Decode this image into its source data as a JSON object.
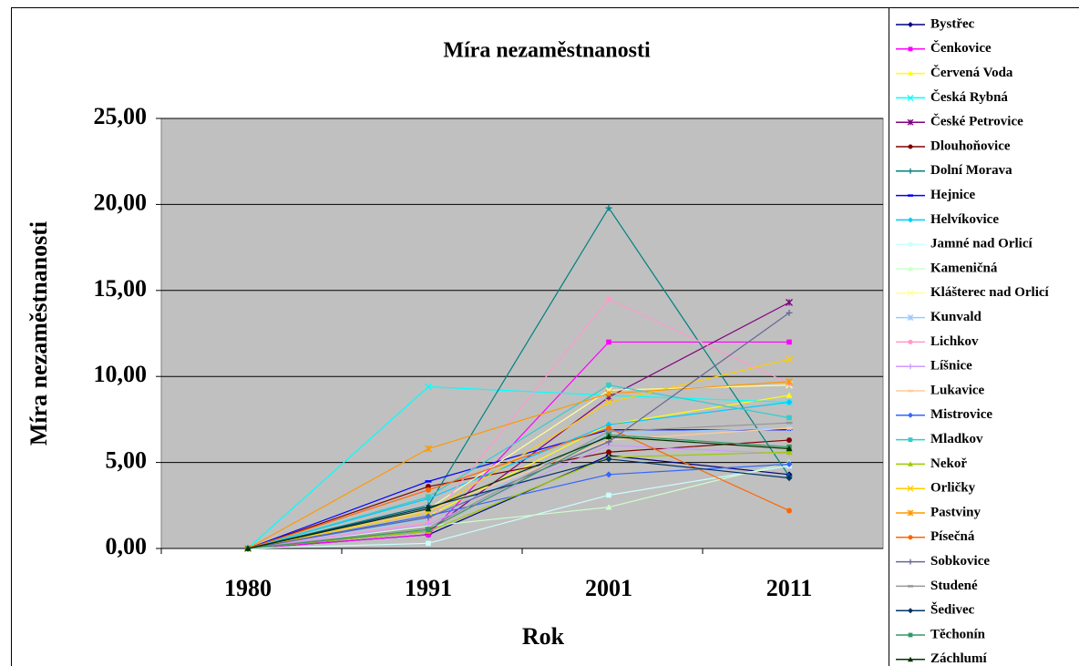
{
  "chart_data": {
    "type": "line",
    "title": "Míra nezaměstnanosti",
    "x_label": "Rok",
    "y_label": "Míra nezaměstnanosti",
    "categories": [
      "1980",
      "1991",
      "2001",
      "2011"
    ],
    "ylim": [
      0,
      25
    ],
    "yticks": [
      {
        "value": 0,
        "label": "0,00"
      },
      {
        "value": 5,
        "label": "5,00"
      },
      {
        "value": 10,
        "label": "10,00"
      },
      {
        "value": 15,
        "label": "15,00"
      },
      {
        "value": 20,
        "label": "20,00"
      },
      {
        "value": 25,
        "label": "25,00"
      }
    ],
    "grid": true,
    "legend": "right",
    "series": [
      {
        "name": "Bystřec",
        "color": "#000080",
        "values": [
          0,
          0.8,
          5.4,
          4.3
        ]
      },
      {
        "name": "Čenkovice",
        "color": "#FF00FF",
        "values": [
          0,
          0.8,
          12.0,
          12.0
        ]
      },
      {
        "name": "Červená Voda",
        "color": "#FFFF00",
        "values": [
          0,
          1.9,
          7.2,
          8.9
        ]
      },
      {
        "name": "Česká Rybná",
        "color": "#00FFFF",
        "values": [
          0,
          9.4,
          8.9,
          8.5
        ]
      },
      {
        "name": "České Petrovice",
        "color": "#800080",
        "values": [
          0,
          1.0,
          8.8,
          14.3
        ]
      },
      {
        "name": "Dlouhoňovice",
        "color": "#800000",
        "values": [
          0,
          3.6,
          5.6,
          6.3
        ]
      },
      {
        "name": "Dolní Morava",
        "color": "#008080",
        "values": [
          0,
          2.5,
          19.8,
          4.2
        ]
      },
      {
        "name": "Hejnice",
        "color": "#0000FF",
        "values": [
          0,
          3.9,
          6.9,
          6.9
        ]
      },
      {
        "name": "Helvíkovice",
        "color": "#00CCFF",
        "values": [
          0,
          2.9,
          7.2,
          8.5
        ]
      },
      {
        "name": "Jamné nad Orlicí",
        "color": "#CCFFFF",
        "values": [
          0,
          0.3,
          3.1,
          4.8
        ]
      },
      {
        "name": "Kameničná",
        "color": "#CCFFCC",
        "values": [
          0,
          1.3,
          2.4,
          5.0
        ]
      },
      {
        "name": "Klášterec nad Orlicí",
        "color": "#FFFF99",
        "values": [
          0,
          2.3,
          9.2,
          9.5
        ]
      },
      {
        "name": "Kunvald",
        "color": "#99CCFF",
        "values": [
          0,
          1.7,
          6.7,
          7.0
        ]
      },
      {
        "name": "Lichkov",
        "color": "#FF99CC",
        "values": [
          0,
          1.5,
          14.5,
          9.6
        ]
      },
      {
        "name": "Líšnice",
        "color": "#CC99FF",
        "values": [
          0,
          1.4,
          6.0,
          5.5
        ]
      },
      {
        "name": "Lukavice",
        "color": "#FFCC99",
        "values": [
          0,
          2.2,
          6.3,
          7.0
        ]
      },
      {
        "name": "Mistrovice",
        "color": "#3366FF",
        "values": [
          0,
          1.9,
          4.3,
          4.9
        ]
      },
      {
        "name": "Mladkov",
        "color": "#33CCCC",
        "values": [
          0,
          3.0,
          9.5,
          7.6
        ]
      },
      {
        "name": "Nekoř",
        "color": "#99CC00",
        "values": [
          0,
          1.0,
          5.3,
          5.6
        ]
      },
      {
        "name": "Orličky",
        "color": "#FFCC00",
        "values": [
          0,
          2.1,
          8.5,
          11.0
        ]
      },
      {
        "name": "Pastviny",
        "color": "#FF9900",
        "values": [
          0,
          5.8,
          9.0,
          9.7
        ]
      },
      {
        "name": "Písečná",
        "color": "#FF6600",
        "values": [
          0,
          3.4,
          7.0,
          2.2
        ]
      },
      {
        "name": "Sobkovice",
        "color": "#666699",
        "values": [
          0,
          1.8,
          6.2,
          13.7
        ]
      },
      {
        "name": "Studené",
        "color": "#969696",
        "values": [
          0,
          1.2,
          6.8,
          7.3
        ]
      },
      {
        "name": "Šedivec",
        "color": "#003366",
        "values": [
          0,
          2.4,
          5.2,
          4.1
        ]
      },
      {
        "name": "Těchonín",
        "color": "#339966",
        "values": [
          0,
          1.1,
          6.6,
          5.9
        ]
      },
      {
        "name": "Záchlumí",
        "color": "#003300",
        "values": [
          0,
          2.3,
          6.5,
          5.8
        ]
      }
    ]
  }
}
